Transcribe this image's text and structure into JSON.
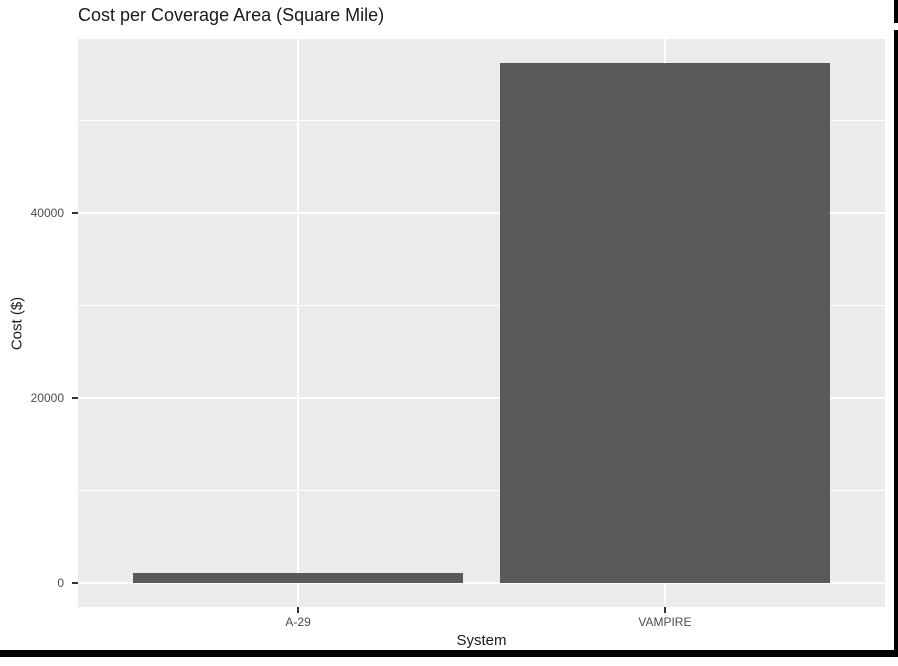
{
  "window": {
    "border_color": "#000000"
  },
  "chart_data": {
    "type": "bar",
    "title": "Cost per Coverage Area (Square Mile)",
    "xlabel": "System",
    "ylabel": "Cost ($)",
    "categories": [
      "A-29",
      "VAMPIRE"
    ],
    "values": [
      1080,
      56200
    ],
    "yticks": [
      0,
      20000,
      40000
    ],
    "ytick_labels": [
      "0",
      "20000",
      "40000"
    ],
    "minor_yticks": [
      10000,
      30000,
      50000
    ],
    "ylim": [
      -2600,
      58810
    ],
    "grid": "on",
    "legend": "none",
    "bar_color": "#595959",
    "panel_bg": "#EBEBEB",
    "grid_color": "#FFFFFF",
    "axis_text_color": "#4D4D4D",
    "tick_mark_color": "#333333",
    "title_color": "#1A1A1A"
  }
}
